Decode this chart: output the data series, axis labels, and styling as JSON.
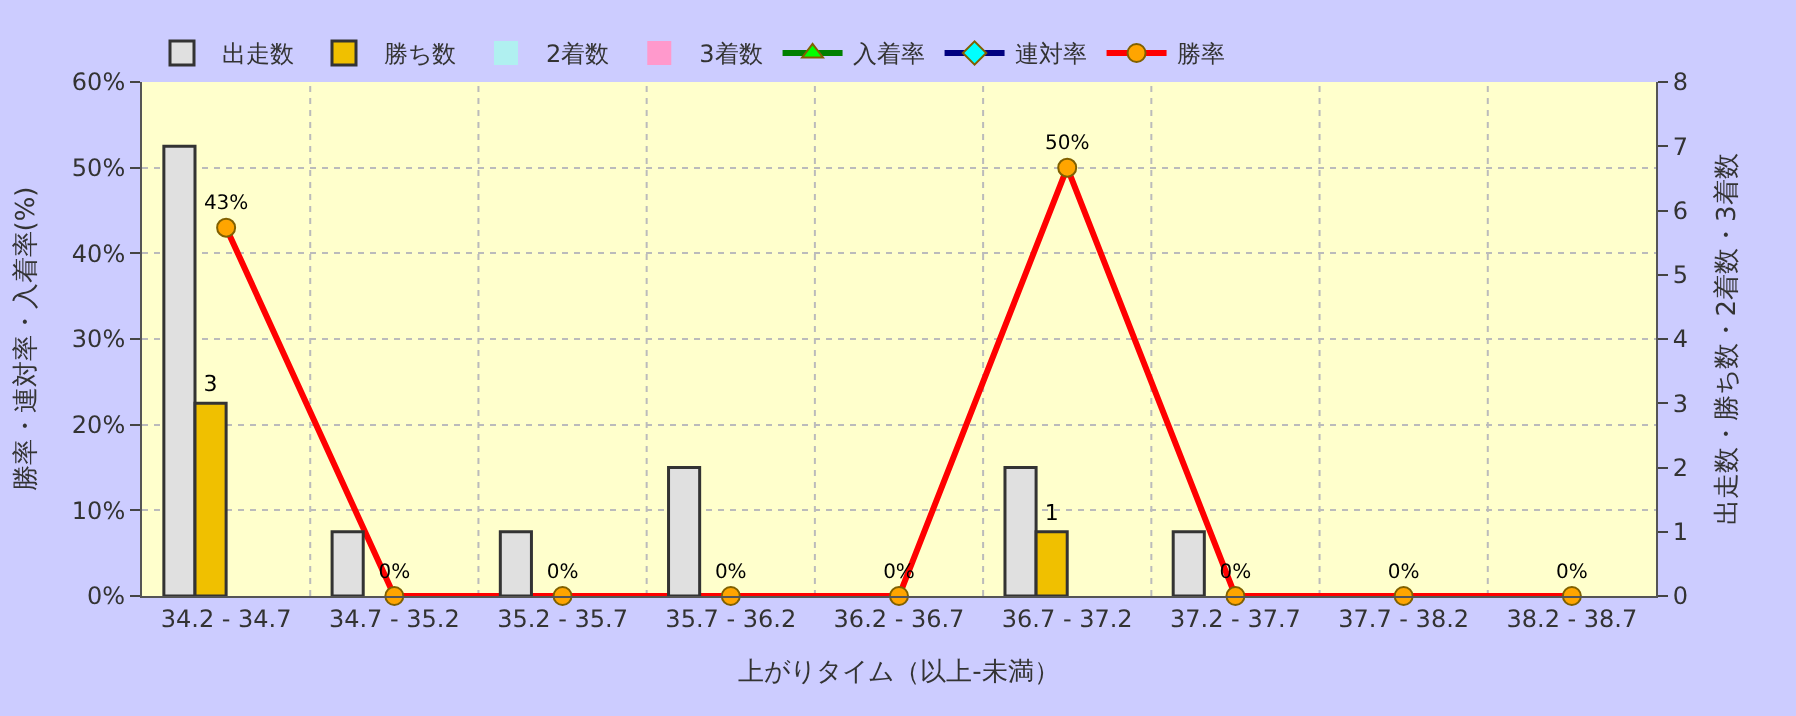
{
  "chart_data": {
    "type": "bar",
    "categories": [
      "34.2 - 34.7",
      "34.7 - 35.2",
      "35.2 - 35.7",
      "35.7 - 36.2",
      "36.2 - 36.7",
      "36.7 - 37.2",
      "37.2 - 37.7",
      "37.7 - 38.2",
      "38.2 - 38.7"
    ],
    "xlabel": "上がりタイム（以上-未満）",
    "ylabel": "勝率・連対率・入着率(%)",
    "y2label": "出走数・勝ち数・2着数・3着数",
    "series": [
      {
        "name": "出走数",
        "axis": "y2",
        "color": "#e0e0e0",
        "values": [
          7,
          1,
          1,
          2,
          0,
          2,
          1,
          0,
          0
        ]
      },
      {
        "name": "勝ち数",
        "axis": "y2",
        "color": "#f0c000",
        "values": [
          3,
          0,
          0,
          0,
          0,
          1,
          0,
          0,
          0
        ],
        "value_labels": [
          "3",
          null,
          null,
          null,
          null,
          "1",
          null,
          null,
          null
        ]
      },
      {
        "name": "2着数",
        "axis": "y2",
        "color": "#b0f0f0",
        "values": [
          0,
          0,
          0,
          0,
          0,
          0,
          0,
          0,
          0
        ]
      },
      {
        "name": "3着数",
        "axis": "y2",
        "color": "#ff99cc",
        "values": [
          0,
          0,
          0,
          0,
          0,
          0,
          0,
          0,
          0
        ]
      },
      {
        "name": "入着率",
        "type": "line",
        "marker": "triangle",
        "color": "#008000",
        "values": [
          null,
          null,
          null,
          null,
          null,
          null,
          null,
          null,
          null
        ]
      },
      {
        "name": "連対率",
        "type": "line",
        "marker": "diamond",
        "color": "#000080",
        "values": [
          null,
          null,
          null,
          null,
          null,
          null,
          null,
          null,
          null
        ]
      },
      {
        "name": "勝率",
        "type": "line",
        "marker": "circle",
        "color": "#ff0000",
        "values": [
          43,
          0,
          0,
          0,
          0,
          50,
          0,
          0,
          0
        ],
        "value_labels": [
          "43%",
          "0%",
          "0%",
          "0%",
          "0%",
          "50%",
          "0%",
          "0%",
          "0%"
        ]
      }
    ],
    "ylim": [
      0,
      60
    ],
    "yticks": [
      {
        "value": 0,
        "label": "0%"
      },
      {
        "value": 10,
        "label": "10%"
      },
      {
        "value": 20,
        "label": "20%"
      },
      {
        "value": 30,
        "label": "30%"
      },
      {
        "value": 40,
        "label": "40%"
      },
      {
        "value": 50,
        "label": "50%"
      },
      {
        "value": 60,
        "label": "60%"
      }
    ],
    "y2lim": [
      0,
      8
    ],
    "y2ticks": [
      0,
      1,
      2,
      3,
      4,
      5,
      6,
      7,
      8
    ],
    "grid": true,
    "legend": "top left"
  }
}
